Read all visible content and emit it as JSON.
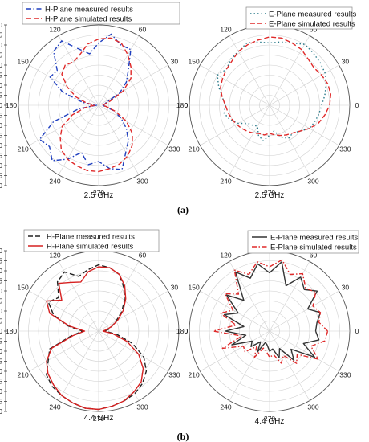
{
  "panel_labels": [
    "(a)",
    "(b)"
  ],
  "chart_data": [
    {
      "type": "polar-line",
      "title": "2.5 GHz",
      "angle_labels": [
        90,
        60,
        30,
        0,
        330,
        300,
        270,
        240,
        210,
        180,
        150,
        120
      ],
      "radial_ticks": [
        0,
        -5,
        -10,
        -15,
        -20,
        -25,
        -30,
        -35,
        -40,
        -35,
        -30,
        -25,
        -20,
        -15,
        -10,
        -5,
        0
      ],
      "rlim": [
        -40,
        0
      ],
      "grid": true,
      "legend_position": "top-left",
      "series": [
        {
          "name": "H-Plane measured results",
          "color": "#1f3fbf",
          "dash": "dashdot",
          "angles": [
            0,
            10,
            20,
            30,
            40,
            50,
            60,
            70,
            80,
            90,
            100,
            110,
            120,
            130,
            140,
            150,
            160,
            170,
            180,
            190,
            200,
            210,
            220,
            230,
            240,
            250,
            260,
            270,
            280,
            290,
            300,
            310,
            320,
            330,
            340,
            350
          ],
          "values": [
            -38,
            -37,
            -36,
            -28,
            -22,
            -17,
            -8,
            -8,
            -4,
            -9,
            -14,
            -10,
            -3,
            -5,
            -13,
            -12,
            -21,
            -32,
            -39,
            -30,
            -16,
            -6,
            -8,
            -4,
            -9,
            -15,
            -10,
            -12,
            -8,
            -6,
            -13,
            -17,
            -22,
            -27,
            -32,
            -37
          ]
        },
        {
          "name": "H-Plane simulated results",
          "color": "#e02a2a",
          "dash": "dash",
          "angles": [
            0,
            10,
            20,
            30,
            40,
            50,
            60,
            70,
            80,
            90,
            100,
            110,
            120,
            130,
            140,
            150,
            160,
            170,
            180,
            190,
            200,
            210,
            220,
            230,
            240,
            250,
            260,
            270,
            280,
            290,
            300,
            310,
            320,
            330,
            340,
            350
          ],
          "values": [
            -38,
            -37,
            -34,
            -26,
            -19,
            -15,
            -11,
            -7,
            -6,
            -7,
            -9,
            -13,
            -15,
            -14,
            -16,
            -22,
            -28,
            -34,
            -38,
            -33,
            -26,
            -19,
            -15,
            -11,
            -9,
            -8,
            -7,
            -7,
            -8,
            -9,
            -11,
            -14,
            -18,
            -24,
            -31,
            -36
          ]
        }
      ]
    },
    {
      "type": "polar-line",
      "title": "2.5 GHz",
      "angle_labels": [
        90,
        60,
        30,
        0,
        330,
        300,
        270,
        240,
        210,
        180,
        150,
        120
      ],
      "rlim": [
        -40,
        0
      ],
      "grid": true,
      "legend_position": "top-right",
      "series": [
        {
          "name": "E-Plane measured results",
          "color": "#2a7a8a",
          "dash": "dot",
          "angles": [
            0,
            10,
            20,
            30,
            40,
            50,
            60,
            70,
            80,
            90,
            100,
            110,
            120,
            130,
            140,
            150,
            160,
            170,
            180,
            190,
            200,
            210,
            220,
            230,
            240,
            250,
            260,
            270,
            280,
            290,
            300,
            310,
            320,
            330,
            340,
            350
          ],
          "values": [
            -14,
            -12,
            -10,
            -8,
            -7,
            -6,
            -5,
            -7,
            -8,
            -9,
            -8,
            -7,
            -9,
            -10,
            -12,
            -10,
            -13,
            -16,
            -18,
            -17,
            -19,
            -22,
            -26,
            -27,
            -28,
            -24,
            -22,
            -25,
            -27,
            -23,
            -21,
            -22,
            -20,
            -17,
            -16,
            -15
          ]
        },
        {
          "name": "E-Plane simulated results",
          "color": "#e02a2a",
          "dash": "dash",
          "angles": [
            0,
            10,
            20,
            30,
            40,
            50,
            60,
            70,
            80,
            90,
            100,
            110,
            120,
            130,
            140,
            150,
            160,
            170,
            180,
            190,
            200,
            210,
            220,
            230,
            240,
            250,
            260,
            270,
            280,
            290,
            300,
            310,
            320,
            330,
            340,
            350
          ],
          "values": [
            -10,
            -9,
            -9,
            -10,
            -11,
            -10,
            -8,
            -7,
            -6,
            -6,
            -7,
            -8,
            -9,
            -11,
            -12,
            -13,
            -14,
            -16,
            -18,
            -19,
            -20,
            -21,
            -22,
            -23,
            -24,
            -25,
            -25,
            -26,
            -25,
            -24,
            -23,
            -22,
            -20,
            -17,
            -14,
            -12
          ]
        }
      ]
    },
    {
      "type": "polar-line",
      "title": "4.4 GHz",
      "angle_labels": [
        90,
        60,
        30,
        0,
        330,
        300,
        270,
        240,
        210,
        180,
        150,
        120
      ],
      "radial_ticks": [
        0,
        -5,
        -10,
        -15,
        -20,
        -25,
        -30,
        -35,
        -40,
        -35,
        -30,
        -25,
        -20,
        -15,
        -10,
        -5,
        0
      ],
      "rlim": [
        -40,
        0
      ],
      "grid": true,
      "legend_position": "top-left",
      "series": [
        {
          "name": "H-Plane measured results",
          "color": "#222222",
          "dash": "dash",
          "angles": [
            0,
            10,
            20,
            30,
            40,
            50,
            60,
            70,
            80,
            90,
            100,
            110,
            120,
            130,
            140,
            150,
            160,
            170,
            180,
            190,
            200,
            210,
            220,
            230,
            240,
            250,
            260,
            270,
            280,
            290,
            300,
            310,
            320,
            330,
            340,
            350
          ],
          "values": [
            -37,
            -35,
            -33,
            -30,
            -25,
            -20,
            -15,
            -10,
            -8,
            -7,
            -9,
            -11,
            -6,
            -8,
            -14,
            -11,
            -16,
            -24,
            -32,
            -26,
            -14,
            -11,
            -6,
            -4,
            -3,
            -2,
            -1,
            -1,
            -2,
            -3,
            -4,
            -6,
            -9,
            -14,
            -22,
            -31
          ]
        },
        {
          "name": "H-Plane simulated results",
          "color": "#d62020",
          "dash": "solid",
          "angles": [
            0,
            10,
            20,
            30,
            40,
            50,
            60,
            70,
            80,
            90,
            100,
            110,
            120,
            130,
            140,
            150,
            160,
            170,
            180,
            190,
            200,
            210,
            220,
            230,
            240,
            250,
            260,
            270,
            280,
            290,
            300,
            310,
            320,
            330,
            340,
            350
          ],
          "values": [
            -38,
            -36,
            -33,
            -29,
            -24,
            -19,
            -14,
            -10,
            -8,
            -8,
            -10,
            -14,
            -12,
            -9,
            -16,
            -10,
            -14,
            -25,
            -33,
            -27,
            -15,
            -10,
            -7,
            -5,
            -3,
            -2,
            -1,
            -1,
            -2,
            -3,
            -5,
            -7,
            -11,
            -17,
            -25,
            -33
          ]
        }
      ]
    },
    {
      "type": "polar-line",
      "title": "4.4 GHz",
      "angle_labels": [
        90,
        60,
        30,
        0,
        330,
        300,
        270,
        240,
        210,
        180,
        150,
        120
      ],
      "rlim": [
        -40,
        0
      ],
      "grid": true,
      "legend_position": "top-right",
      "series": [
        {
          "name": "E-Plane measured results",
          "color": "#333333",
          "dash": "solid",
          "angles": [
            0,
            10,
            20,
            30,
            40,
            50,
            60,
            70,
            80,
            90,
            100,
            110,
            120,
            130,
            140,
            150,
            160,
            170,
            180,
            190,
            200,
            210,
            220,
            230,
            240,
            250,
            260,
            270,
            280,
            290,
            300,
            310,
            320,
            330,
            340,
            350
          ],
          "values": [
            -17,
            -16,
            -13,
            -18,
            -9,
            -13,
            -9,
            -16,
            -5,
            -11,
            -6,
            -12,
            -6,
            -20,
            -12,
            -22,
            -16,
            -27,
            -18,
            -28,
            -20,
            -30,
            -28,
            -33,
            -28,
            -34,
            -33,
            -30,
            -31,
            -26,
            -30,
            -21,
            -26,
            -14,
            -22,
            -15
          ]
        },
        {
          "name": "E-Plane simulated results",
          "color": "#e02a2a",
          "dash": "dashdot",
          "angles": [
            0,
            10,
            20,
            30,
            40,
            50,
            60,
            70,
            80,
            90,
            100,
            110,
            120,
            130,
            140,
            150,
            160,
            170,
            180,
            190,
            200,
            210,
            220,
            230,
            240,
            250,
            260,
            270,
            280,
            290,
            300,
            310,
            320,
            330,
            340,
            350
          ],
          "values": [
            -11,
            -15,
            -13,
            -15,
            -10,
            -12,
            -7,
            -10,
            -4,
            -8,
            -5,
            -10,
            -5,
            -16,
            -11,
            -19,
            -14,
            -23,
            -12,
            -26,
            -15,
            -25,
            -24,
            -30,
            -25,
            -31,
            -30,
            -27,
            -28,
            -23,
            -26,
            -19,
            -22,
            -12,
            -18,
            -12
          ]
        }
      ]
    }
  ]
}
